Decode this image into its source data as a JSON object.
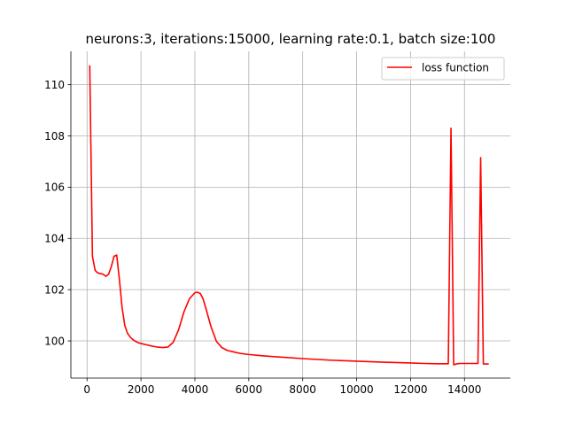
{
  "chart_data": {
    "type": "line",
    "title": "neurons:3, iterations:15000, learning rate:0.1, batch size:100",
    "xlabel": "",
    "ylabel": "",
    "xlim": [
      -600,
      15700
    ],
    "ylim": [
      98.55,
      111.3
    ],
    "x_ticks": [
      0,
      2000,
      4000,
      6000,
      8000,
      10000,
      12000,
      14000
    ],
    "y_ticks": [
      100,
      102,
      104,
      106,
      108,
      110
    ],
    "grid": true,
    "legend_position": "upper right",
    "series": [
      {
        "name": "loss function",
        "color": "#ff0000",
        "x": [
          100,
          200,
          300,
          400,
          500,
          600,
          700,
          800,
          900,
          1000,
          1100,
          1200,
          1300,
          1400,
          1500,
          1600,
          1700,
          1800,
          1900,
          2000,
          2200,
          2400,
          2600,
          2800,
          3000,
          3200,
          3400,
          3600,
          3800,
          4000,
          4100,
          4200,
          4300,
          4400,
          4600,
          4800,
          5000,
          5200,
          5400,
          5700,
          6000,
          6500,
          7000,
          8000,
          9000,
          10000,
          11000,
          12000,
          12500,
          13000,
          13400,
          13500,
          13600,
          13700,
          13800,
          13900,
          14000,
          14200,
          14400,
          14500,
          14600,
          14700,
          14800,
          14900
        ],
        "y": [
          110.75,
          103.3,
          102.75,
          102.65,
          102.63,
          102.6,
          102.52,
          102.6,
          102.9,
          103.3,
          103.35,
          102.4,
          101.3,
          100.6,
          100.3,
          100.15,
          100.05,
          99.98,
          99.93,
          99.9,
          99.85,
          99.8,
          99.76,
          99.74,
          99.76,
          99.95,
          100.45,
          101.15,
          101.65,
          101.88,
          101.9,
          101.85,
          101.65,
          101.3,
          100.55,
          99.98,
          99.74,
          99.63,
          99.58,
          99.51,
          99.47,
          99.42,
          99.38,
          99.31,
          99.25,
          99.21,
          99.17,
          99.14,
          99.12,
          99.11,
          99.11,
          108.3,
          99.07,
          99.1,
          99.12,
          99.12,
          99.12,
          99.12,
          99.12,
          99.12,
          107.15,
          99.1,
          99.1,
          99.1
        ]
      }
    ]
  }
}
